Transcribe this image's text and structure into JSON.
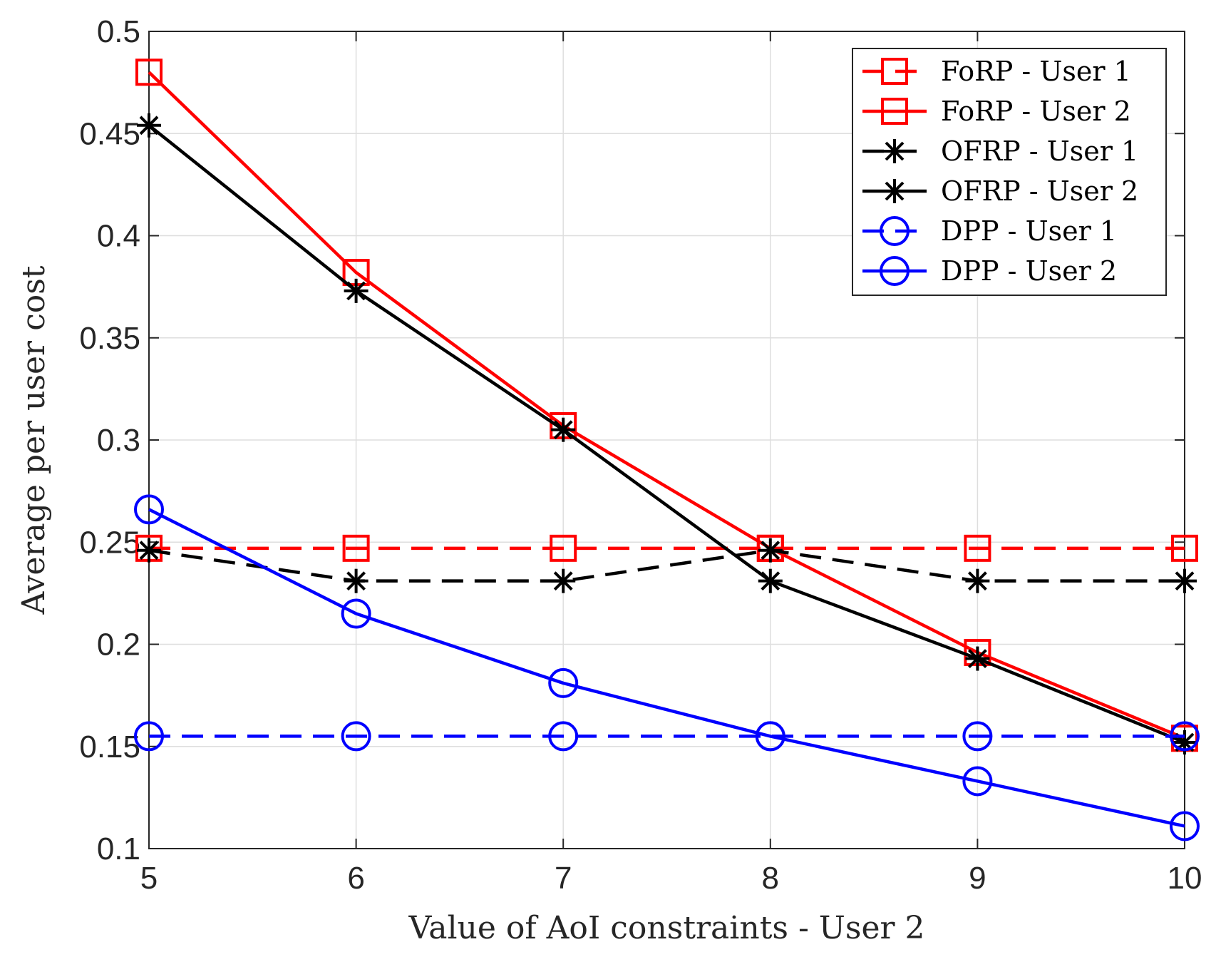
{
  "chart_data": {
    "type": "line",
    "title": "",
    "xlabel": "Value of AoI constraints - User 2",
    "ylabel": "Average per user cost",
    "xlim": [
      5,
      10
    ],
    "ylim": [
      0.1,
      0.5
    ],
    "grid": true,
    "legend_position": "top-right",
    "x": [
      5,
      6,
      7,
      8,
      9,
      10
    ],
    "xticks": [
      "5",
      "6",
      "7",
      "8",
      "9",
      "10"
    ],
    "yticks": [
      "0.1",
      "0.15",
      "0.2",
      "0.25",
      "0.3",
      "0.35",
      "0.4",
      "0.45",
      "0.5"
    ],
    "series": [
      {
        "name": "FoRP - User 1",
        "color": "#ff0000",
        "dash": "dashed",
        "marker": "square",
        "values": [
          0.247,
          0.247,
          0.247,
          0.247,
          0.247,
          0.247
        ]
      },
      {
        "name": "FoRP - User 2",
        "color": "#ff0000",
        "dash": "solid",
        "marker": "square",
        "values": [
          0.48,
          0.382,
          0.307,
          0.247,
          0.196,
          0.154
        ]
      },
      {
        "name": "OFRP - User 1",
        "color": "#000000",
        "dash": "dashed",
        "marker": "asterisk",
        "values": [
          0.246,
          0.231,
          0.231,
          0.246,
          0.231,
          0.231
        ]
      },
      {
        "name": "OFRP - User 2",
        "color": "#000000",
        "dash": "solid",
        "marker": "asterisk",
        "values": [
          0.454,
          0.373,
          0.305,
          0.231,
          0.193,
          0.152
        ]
      },
      {
        "name": "DPP - User 1",
        "color": "#0000ff",
        "dash": "dashed",
        "marker": "circle",
        "values": [
          0.155,
          0.155,
          0.155,
          0.155,
          0.155,
          0.155
        ]
      },
      {
        "name": "DPP - User 2",
        "color": "#0000ff",
        "dash": "solid",
        "marker": "circle",
        "values": [
          0.266,
          0.215,
          0.181,
          0.155,
          0.133,
          0.111
        ]
      }
    ]
  }
}
